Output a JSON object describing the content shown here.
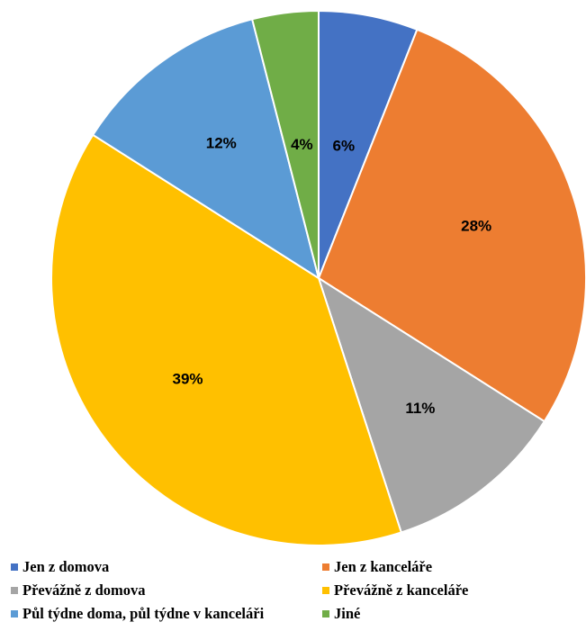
{
  "chart_data": {
    "type": "pie",
    "title": "",
    "slices": [
      {
        "name": "Jen z domova",
        "value": 6,
        "label": "6%",
        "color": "#4472C4"
      },
      {
        "name": "Jen z kanceláře",
        "value": 28,
        "label": "28%",
        "color": "#ED7D31"
      },
      {
        "name": "Převážně z domova",
        "value": 11,
        "label": "11%",
        "color": "#A5A5A5"
      },
      {
        "name": "Převážně z kanceláře",
        "value": 39,
        "label": "39%",
        "color": "#FFC000"
      },
      {
        "name": "Půl týdne doma, půl týdne v kanceláři",
        "value": 12,
        "label": "12%",
        "color": "#5B9BD5"
      },
      {
        "name": "Jiné",
        "value": 4,
        "label": "4%",
        "color": "#70AD47"
      }
    ],
    "legend_position": "bottom"
  }
}
